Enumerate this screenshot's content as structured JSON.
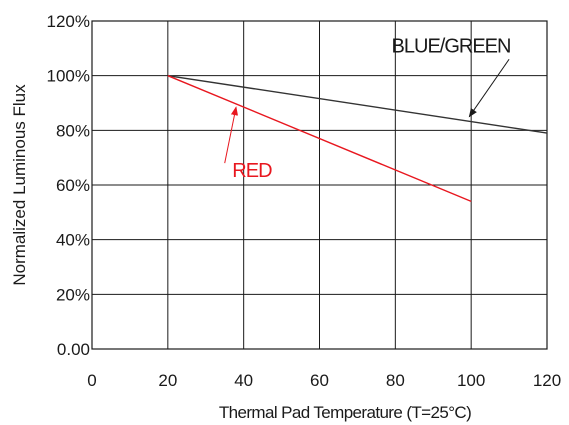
{
  "chart_data": {
    "type": "line",
    "xlabel": "Thermal Pad Temperature (T=25°C)",
    "ylabel": "Normalized Luminous Flux",
    "xlim": [
      0,
      120
    ],
    "ylim": [
      0,
      120
    ],
    "x_ticks": [
      0,
      20,
      40,
      60,
      80,
      100,
      120
    ],
    "x_tick_labels": [
      "0",
      "20",
      "40",
      "60",
      "80",
      "100",
      "120"
    ],
    "y_ticks": [
      0,
      20,
      40,
      60,
      80,
      100,
      120
    ],
    "y_tick_labels": [
      "0.00",
      "20%",
      "40%",
      "60%",
      "80%",
      "100%",
      "120%"
    ],
    "grid": true,
    "series": [
      {
        "name": "BLUE/GREEN",
        "color": "#333333",
        "points": [
          [
            20,
            100
          ],
          [
            120,
            79
          ]
        ]
      },
      {
        "name": "RED",
        "color": "#e8171f",
        "points": [
          [
            20,
            100
          ],
          [
            100,
            54
          ]
        ]
      }
    ],
    "annotations": [
      {
        "text": "BLUE/GREEN",
        "color": "#1a1a1a",
        "anchor": [
          79,
          108.5
        ],
        "arrow_from": [
          110,
          106
        ],
        "arrow_to": [
          99.5,
          85
        ]
      },
      {
        "text": "RED",
        "color": "#e8171f",
        "anchor": [
          37,
          63
        ],
        "arrow_from": [
          35,
          68
        ],
        "arrow_to": [
          38,
          88.5
        ]
      }
    ]
  }
}
